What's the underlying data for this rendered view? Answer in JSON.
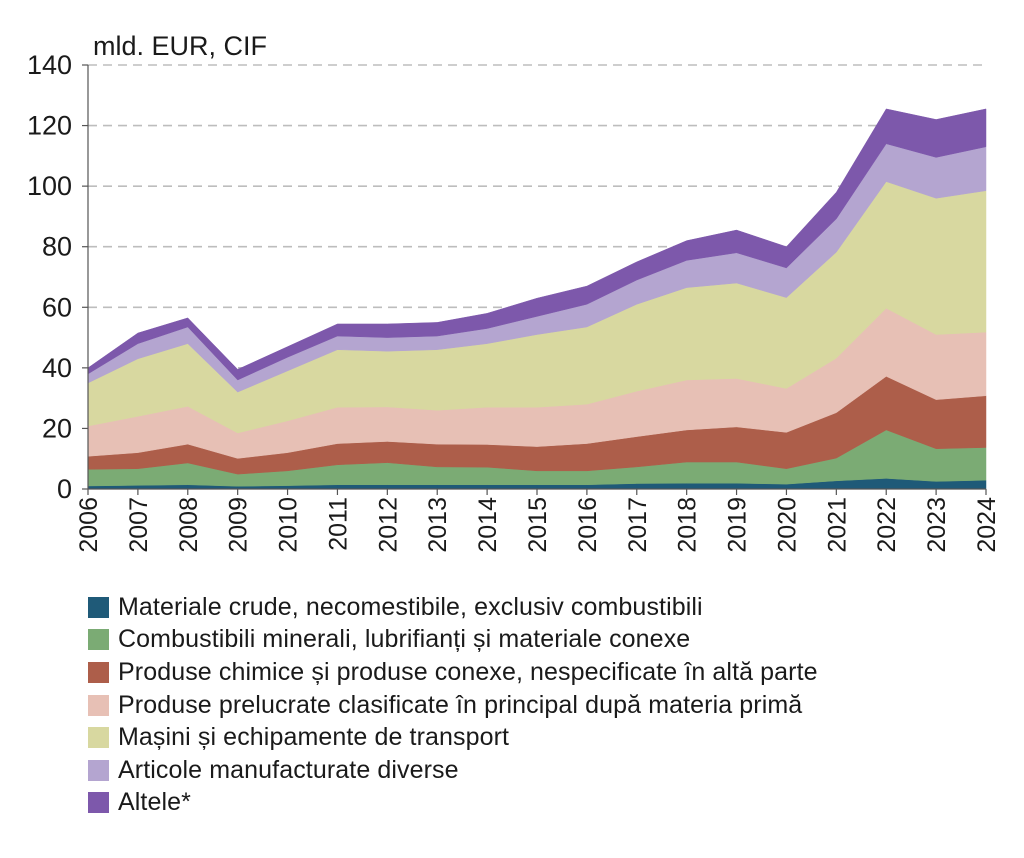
{
  "chart_data": {
    "type": "area",
    "stacked": true,
    "unit_label": "mld. EUR, CIF",
    "x": [
      2006,
      2007,
      2008,
      2009,
      2010,
      2011,
      2012,
      2013,
      2014,
      2015,
      2016,
      2017,
      2018,
      2019,
      2020,
      2021,
      2022,
      2023,
      2024
    ],
    "x_tick_labels": [
      "2006",
      "2007",
      "2008",
      "2009",
      "2010",
      "2011",
      "2012",
      "2013",
      "2014",
      "2015",
      "2016",
      "2017",
      "2018",
      "2019",
      "2020",
      "2021",
      "2022",
      "2023",
      "2024"
    ],
    "ylim": [
      0,
      140
    ],
    "y_ticks": [
      0,
      20,
      40,
      60,
      80,
      100,
      120,
      140
    ],
    "y_tick_labels": [
      "0",
      "20",
      "40",
      "60",
      "80",
      "100",
      "120",
      "140"
    ],
    "grid": true,
    "legend_position": "bottom",
    "series": [
      {
        "name": "Materiale crude, necomestibile, exclusiv combustibili",
        "color": "#1f5a78",
        "values": [
          1.0,
          1.2,
          1.4,
          0.9,
          1.1,
          1.4,
          1.4,
          1.4,
          1.4,
          1.4,
          1.4,
          1.8,
          1.9,
          1.9,
          1.6,
          2.7,
          3.5,
          2.5,
          2.9
        ]
      },
      {
        "name": "Combustibili minerali, lubrifianți și materiale conexe",
        "color": "#7bab74",
        "values": [
          5.5,
          5.5,
          7.2,
          4.0,
          4.9,
          6.6,
          7.3,
          5.9,
          5.8,
          4.6,
          4.6,
          5.5,
          7.0,
          7.0,
          5.1,
          7.5,
          16.0,
          10.8,
          10.8
        ]
      },
      {
        "name": "Produse chimice și produse conexe, nespecificate în altă parte",
        "color": "#ad5e4a",
        "values": [
          4.3,
          5.3,
          6.2,
          5.2,
          6.0,
          7.0,
          7.0,
          7.5,
          7.5,
          8.0,
          9.0,
          10.0,
          10.6,
          11.6,
          12.0,
          15.0,
          17.7,
          16.2,
          17.1
        ]
      },
      {
        "name": "Produse prelucrate clasificate în principal după materia primă",
        "color": "#e7c0b5",
        "values": [
          10.0,
          12.0,
          12.5,
          8.4,
          10.5,
          12.0,
          11.4,
          11.2,
          12.3,
          13.0,
          13.0,
          15.0,
          16.5,
          16.0,
          14.5,
          18.0,
          22.5,
          21.5,
          21.0
        ]
      },
      {
        "name": "Mașini și echipamente de transport",
        "color": "#d8d8a0",
        "values": [
          14.2,
          19.0,
          20.7,
          13.5,
          16.5,
          19.0,
          18.4,
          20.0,
          21.0,
          24.0,
          25.5,
          28.7,
          30.5,
          31.5,
          30.0,
          35.0,
          41.8,
          45.0,
          46.7
        ]
      },
      {
        "name": "Articole manufacturate diverse",
        "color": "#b4a5d0",
        "values": [
          3.0,
          5.0,
          5.5,
          4.0,
          4.5,
          4.5,
          4.5,
          4.5,
          5.0,
          6.0,
          7.5,
          8.0,
          9.0,
          10.0,
          9.8,
          11.0,
          12.5,
          13.5,
          14.5
        ]
      },
      {
        "name": "Altele*",
        "color": "#7d58ab",
        "values": [
          2.0,
          3.5,
          3.0,
          3.5,
          3.5,
          4.0,
          4.5,
          4.5,
          5.0,
          6.0,
          6.0,
          6.0,
          6.5,
          7.5,
          7.0,
          8.8,
          11.5,
          12.5,
          12.5
        ]
      }
    ]
  }
}
